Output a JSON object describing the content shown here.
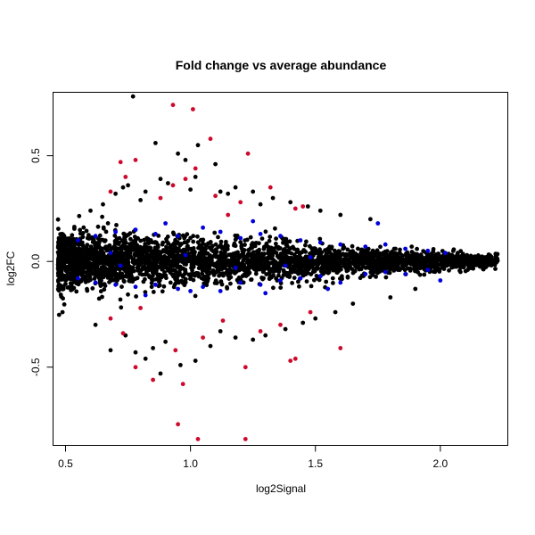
{
  "chart_data": {
    "type": "scatter",
    "title": "Fold change vs average abundance",
    "xlabel": "log2Signal",
    "ylabel": "log2FC",
    "xlim": [
      0.45,
      2.27
    ],
    "ylim": [
      -0.87,
      0.8
    ],
    "x_ticks": [
      0.5,
      1.0,
      1.5,
      2.0
    ],
    "x_tick_labels": [
      "0.5",
      "1.0",
      "1.5",
      "2.0"
    ],
    "y_ticks": [
      -0.5,
      0.0,
      0.5
    ],
    "y_tick_labels": [
      "-0.5",
      "0.0",
      "0.5"
    ],
    "grid": false,
    "legend": "none",
    "colors": {
      "default": "#000000",
      "significant": "#cd0a2c",
      "highlighted": "#0000dd"
    },
    "series": [
      {
        "color": "#000000",
        "points": [
          [
            0.77,
            0.78
          ],
          [
            0.86,
            0.56
          ],
          [
            0.95,
            0.51
          ],
          [
            0.98,
            0.48
          ],
          [
            1.03,
            0.55
          ],
          [
            1.1,
            0.46
          ],
          [
            0.7,
            0.32
          ],
          [
            0.73,
            0.35
          ],
          [
            0.75,
            0.36
          ],
          [
            0.82,
            0.33
          ],
          [
            0.88,
            0.39
          ],
          [
            0.91,
            0.37
          ],
          [
            1.0,
            0.34
          ],
          [
            1.02,
            0.4
          ],
          [
            1.12,
            0.33
          ],
          [
            1.15,
            0.32
          ],
          [
            1.18,
            0.35
          ],
          [
            1.25,
            0.33
          ],
          [
            1.33,
            0.3
          ],
          [
            1.4,
            0.28
          ],
          [
            1.47,
            0.26
          ],
          [
            1.52,
            0.24
          ],
          [
            1.6,
            0.22
          ],
          [
            1.72,
            0.2
          ],
          [
            0.6,
            0.24
          ],
          [
            0.65,
            0.27
          ],
          [
            0.8,
            0.29
          ],
          [
            1.28,
            0.27
          ],
          [
            0.68,
            -0.42
          ],
          [
            0.78,
            -0.43
          ],
          [
            0.82,
            -0.46
          ],
          [
            0.85,
            -0.41
          ],
          [
            0.88,
            -0.53
          ],
          [
            0.96,
            -0.49
          ],
          [
            1.02,
            -0.47
          ],
          [
            1.08,
            -0.4
          ],
          [
            1.18,
            -0.36
          ],
          [
            1.3,
            -0.35
          ],
          [
            0.74,
            -0.35
          ],
          [
            0.9,
            -0.38
          ],
          [
            1.12,
            -0.33
          ],
          [
            1.38,
            -0.32
          ],
          [
            1.5,
            -0.27
          ],
          [
            1.58,
            -0.24
          ],
          [
            1.65,
            -0.2
          ],
          [
            1.8,
            -0.17
          ],
          [
            1.9,
            -0.13
          ],
          [
            0.62,
            -0.3
          ],
          [
            1.25,
            -0.37
          ],
          [
            1.45,
            -0.29
          ]
        ]
      },
      {
        "color": "#cd0a2c",
        "points": [
          [
            0.93,
            0.74
          ],
          [
            1.01,
            0.72
          ],
          [
            1.08,
            0.58
          ],
          [
            1.23,
            0.51
          ],
          [
            0.72,
            0.47
          ],
          [
            0.78,
            0.48
          ],
          [
            0.93,
            0.36
          ],
          [
            0.98,
            0.39
          ],
          [
            1.02,
            0.44
          ],
          [
            0.68,
            0.33
          ],
          [
            0.74,
            0.4
          ],
          [
            1.1,
            0.31
          ],
          [
            1.2,
            0.28
          ],
          [
            1.32,
            0.35
          ],
          [
            1.45,
            0.26
          ],
          [
            1.42,
            0.25
          ],
          [
            0.88,
            0.3
          ],
          [
            1.15,
            0.22
          ],
          [
            0.95,
            -0.77
          ],
          [
            1.03,
            -0.84
          ],
          [
            1.22,
            -0.84
          ],
          [
            0.85,
            -0.56
          ],
          [
            0.97,
            -0.58
          ],
          [
            0.78,
            -0.5
          ],
          [
            1.22,
            -0.5
          ],
          [
            1.6,
            -0.41
          ],
          [
            1.4,
            -0.47
          ],
          [
            1.42,
            -0.46
          ],
          [
            0.94,
            -0.42
          ],
          [
            1.05,
            -0.36
          ],
          [
            0.73,
            -0.34
          ],
          [
            1.28,
            -0.33
          ],
          [
            1.36,
            -0.3
          ],
          [
            0.68,
            -0.27
          ],
          [
            1.13,
            -0.28
          ],
          [
            1.48,
            -0.24
          ],
          [
            0.8,
            -0.22
          ]
        ]
      },
      {
        "color": "#0000dd",
        "points": [
          [
            0.55,
            0.1
          ],
          [
            0.62,
            0.12
          ],
          [
            0.7,
            0.14
          ],
          [
            0.78,
            0.15
          ],
          [
            0.86,
            0.13
          ],
          [
            0.95,
            0.12
          ],
          [
            1.05,
            0.16
          ],
          [
            1.12,
            0.14
          ],
          [
            1.2,
            0.11
          ],
          [
            1.28,
            0.13
          ],
          [
            1.36,
            0.12
          ],
          [
            1.44,
            0.1
          ],
          [
            1.52,
            0.09
          ],
          [
            1.6,
            0.08
          ],
          [
            1.7,
            0.07
          ],
          [
            1.78,
            0.08
          ],
          [
            1.86,
            0.06
          ],
          [
            1.95,
            0.05
          ],
          [
            2.02,
            0.04
          ],
          [
            1.75,
            0.18
          ],
          [
            1.25,
            0.19
          ],
          [
            0.9,
            0.18
          ],
          [
            0.55,
            -0.08
          ],
          [
            0.62,
            -0.1
          ],
          [
            0.7,
            -0.11
          ],
          [
            0.78,
            -0.12
          ],
          [
            0.86,
            -0.11
          ],
          [
            0.95,
            -0.13
          ],
          [
            1.05,
            -0.12
          ],
          [
            1.12,
            -0.14
          ],
          [
            1.2,
            -0.1
          ],
          [
            1.28,
            -0.11
          ],
          [
            1.36,
            -0.09
          ],
          [
            1.44,
            -0.08
          ],
          [
            1.52,
            -0.07
          ],
          [
            1.6,
            -0.1
          ],
          [
            1.7,
            -0.06
          ],
          [
            1.78,
            -0.05
          ],
          [
            1.86,
            -0.06
          ],
          [
            1.95,
            -0.04
          ],
          [
            2.0,
            -0.09
          ],
          [
            1.55,
            -0.13
          ],
          [
            1.3,
            -0.15
          ],
          [
            1.0,
            -0.14
          ],
          [
            0.82,
            -0.16
          ],
          [
            0.68,
            0.04
          ],
          [
            0.98,
            0.03
          ],
          [
            1.18,
            -0.03
          ],
          [
            1.48,
            0.02
          ],
          [
            0.72,
            -0.02
          ],
          [
            1.38,
            -0.02
          ]
        ]
      }
    ]
  }
}
